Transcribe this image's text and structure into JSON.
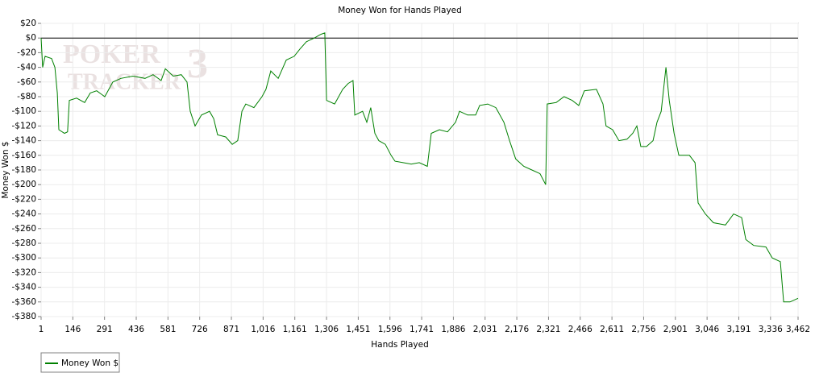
{
  "chart_data": {
    "type": "line",
    "title": "Money Won for Hands Played",
    "x_label": "Hands Played",
    "y_label": "Money Won $",
    "watermark": {
      "top": "POKER",
      "number": "3",
      "bottom": "TRACKER"
    },
    "grid": true,
    "zero_line": true,
    "legend": "bottom-left",
    "xlim": [
      1,
      3462
    ],
    "ylim": [
      -380,
      20
    ],
    "xticks": [
      1,
      146,
      291,
      436,
      581,
      726,
      871,
      {
        "value": 1016,
        "label": "1,016"
      },
      {
        "value": 1161,
        "label": "1,161"
      },
      {
        "value": 1306,
        "label": "1,306"
      },
      {
        "value": 1451,
        "label": "1,451"
      },
      {
        "value": 1596,
        "label": "1,596"
      },
      {
        "value": 1741,
        "label": "1,741"
      },
      {
        "value": 1886,
        "label": "1,886"
      },
      {
        "value": 2031,
        "label": "2,031"
      },
      {
        "value": 2176,
        "label": "2,176"
      },
      {
        "value": 2321,
        "label": "2,321"
      },
      {
        "value": 2466,
        "label": "2,466"
      },
      {
        "value": 2611,
        "label": "2,611"
      },
      {
        "value": 2756,
        "label": "2,756"
      },
      {
        "value": 2901,
        "label": "2,901"
      },
      {
        "value": 3046,
        "label": "3,046"
      },
      {
        "value": 3191,
        "label": "3,191"
      },
      {
        "value": 3336,
        "label": "3,336"
      },
      {
        "value": 3462,
        "label": "3,462"
      }
    ],
    "yticks": [
      {
        "value": 20,
        "label": "$20"
      },
      {
        "value": 0,
        "label": "$0"
      },
      {
        "value": -20,
        "label": "-$20"
      },
      {
        "value": -40,
        "label": "-$40"
      },
      {
        "value": -60,
        "label": "-$60"
      },
      {
        "value": -80,
        "label": "-$80"
      },
      {
        "value": -100,
        "label": "-$100"
      },
      {
        "value": -120,
        "label": "-$120"
      },
      {
        "value": -140,
        "label": "-$140"
      },
      {
        "value": -160,
        "label": "-$160"
      },
      {
        "value": -180,
        "label": "-$180"
      },
      {
        "value": -200,
        "label": "-$200"
      },
      {
        "value": -220,
        "label": "-$220"
      },
      {
        "value": -240,
        "label": "-$240"
      },
      {
        "value": -260,
        "label": "-$260"
      },
      {
        "value": -280,
        "label": "-$280"
      },
      {
        "value": -300,
        "label": "-$300"
      },
      {
        "value": -320,
        "label": "-$320"
      },
      {
        "value": -340,
        "label": "-$340"
      },
      {
        "value": -360,
        "label": "-$360"
      },
      {
        "value": -380,
        "label": "-$380"
      }
    ],
    "x": [
      1,
      8,
      19,
      49,
      64,
      75,
      82,
      108,
      122,
      130,
      163,
      200,
      226,
      255,
      292,
      329,
      366,
      421,
      476,
      513,
      550,
      569,
      605,
      642,
      668,
      683,
      705,
      734,
      771,
      790,
      808,
      845,
      875,
      900,
      919,
      937,
      974,
      1011,
      1029,
      1051,
      1085,
      1122,
      1158,
      1184,
      1214,
      1250,
      1280,
      1298,
      1306,
      1343,
      1380,
      1405,
      1427,
      1435,
      1471,
      1490,
      1508,
      1527,
      1545,
      1575,
      1601,
      1619,
      1656,
      1693,
      1730,
      1767,
      1785,
      1822,
      1859,
      1896,
      1914,
      1951,
      1988,
      2006,
      2043,
      2080,
      2117,
      2143,
      2171,
      2208,
      2245,
      2282,
      2308,
      2315,
      2356,
      2392,
      2429,
      2459,
      2485,
      2540,
      2570,
      2584,
      2614,
      2643,
      2680,
      2706,
      2725,
      2743,
      2769,
      2799,
      2817,
      2836,
      2858,
      2873,
      2895,
      2917,
      2965,
      2991,
      3005,
      3038,
      3075,
      3130,
      3167,
      3204,
      3223,
      3259,
      3315,
      3344,
      3381,
      3396,
      3425,
      3462
    ],
    "series": [
      {
        "name": "Money Won $",
        "color": "#008000",
        "values": [
          0,
          -40,
          -25,
          -28,
          -40,
          -75,
          -125,
          -130,
          -128,
          -85,
          -82,
          -88,
          -75,
          -72,
          -80,
          -60,
          -55,
          -52,
          -55,
          -50,
          -58,
          -42,
          -52,
          -50,
          -60,
          -100,
          -120,
          -105,
          -100,
          -110,
          -132,
          -135,
          -145,
          -140,
          -100,
          -90,
          -95,
          -80,
          -70,
          -45,
          -55,
          -30,
          -25,
          -15,
          -5,
          0,
          5,
          7,
          -85,
          -90,
          -70,
          -62,
          -58,
          -105,
          -100,
          -115,
          -95,
          -130,
          -140,
          -145,
          -160,
          -168,
          -170,
          -172,
          -170,
          -175,
          -130,
          -125,
          -128,
          -115,
          -100,
          -105,
          -105,
          -92,
          -90,
          -95,
          -115,
          -140,
          -165,
          -175,
          -180,
          -185,
          -200,
          -90,
          -88,
          -80,
          -85,
          -92,
          -72,
          -70,
          -90,
          -120,
          -125,
          -140,
          -138,
          -130,
          -120,
          -148,
          -148,
          -140,
          -115,
          -100,
          -40,
          -85,
          -130,
          -160,
          -160,
          -170,
          -225,
          -240,
          -252,
          -255,
          -240,
          -245,
          -275,
          -283,
          -285,
          -300,
          -305,
          -360,
          -360,
          -355
        ]
      }
    ]
  }
}
